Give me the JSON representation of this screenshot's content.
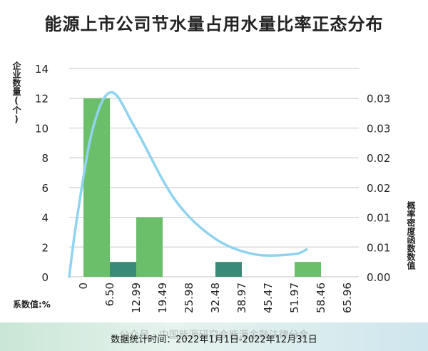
{
  "chart_data": {
    "type": "bar",
    "title": "能源上市公司节水量占用水量比率正态分布",
    "ylabel": "企业数量(个)",
    "y2label": "概率密度函数数值",
    "xlabel": "系数值:%",
    "ylim": [
      0,
      14
    ],
    "yticks": [
      0,
      2,
      4,
      6,
      8,
      10,
      12,
      14
    ],
    "y2lim": [
      0,
      0.035
    ],
    "y2ticks": [
      {
        "value": 0.0,
        "label": "0.00"
      },
      {
        "value": 0.005,
        "label": "0.01"
      },
      {
        "value": 0.01,
        "label": "0.01"
      },
      {
        "value": 0.015,
        "label": "0.02"
      },
      {
        "value": 0.02,
        "label": "0.02"
      },
      {
        "value": 0.025,
        "label": "0.03"
      },
      {
        "value": 0.03,
        "label": "0.03"
      }
    ],
    "categories": [
      "0",
      "6.50",
      "12.99",
      "19.49",
      "25.98",
      "32.48",
      "38.97",
      "45.47",
      "51.97",
      "58.46",
      "65.96"
    ],
    "bars": [
      {
        "index": 0,
        "value": 12,
        "color": "#6cbf6a"
      },
      {
        "index": 1,
        "value": 1,
        "color": "#3a8a78"
      },
      {
        "index": 2,
        "value": 4,
        "color": "#6cbf6a"
      },
      {
        "index": 3,
        "value": 0,
        "color": "#6cbf6a"
      },
      {
        "index": 4,
        "value": 0,
        "color": "#6cbf6a"
      },
      {
        "index": 5,
        "value": 1,
        "color": "#3a8a78"
      },
      {
        "index": 6,
        "value": 0,
        "color": "#6cbf6a"
      },
      {
        "index": 7,
        "value": 0,
        "color": "#6cbf6a"
      },
      {
        "index": 8,
        "value": 1,
        "color": "#6cbf6a"
      },
      {
        "index": 9,
        "value": 0,
        "color": "#6cbf6a"
      }
    ],
    "density_curve": {
      "color": "#8fd3ee",
      "axis": "secondary",
      "points": [
        [
          0.0,
          0.0
        ],
        [
          0.3,
          0.01
        ],
        [
          0.9,
          0.025
        ],
        [
          1.6,
          0.031
        ],
        [
          2.5,
          0.025
        ],
        [
          4.0,
          0.013
        ],
        [
          5.5,
          0.0065
        ],
        [
          7.0,
          0.0038
        ],
        [
          8.5,
          0.0038
        ],
        [
          9.0,
          0.0046
        ]
      ]
    },
    "grid": "horizontal",
    "legend": "none",
    "colors": {
      "grid": "#cfcfcf",
      "axis_text": "#222222"
    }
  },
  "footer": {
    "text": "数据统计时间：2022年1月1日-2022年12月31日",
    "watermark": "公众号 · 中国能源研究会能源金融法律分会"
  }
}
